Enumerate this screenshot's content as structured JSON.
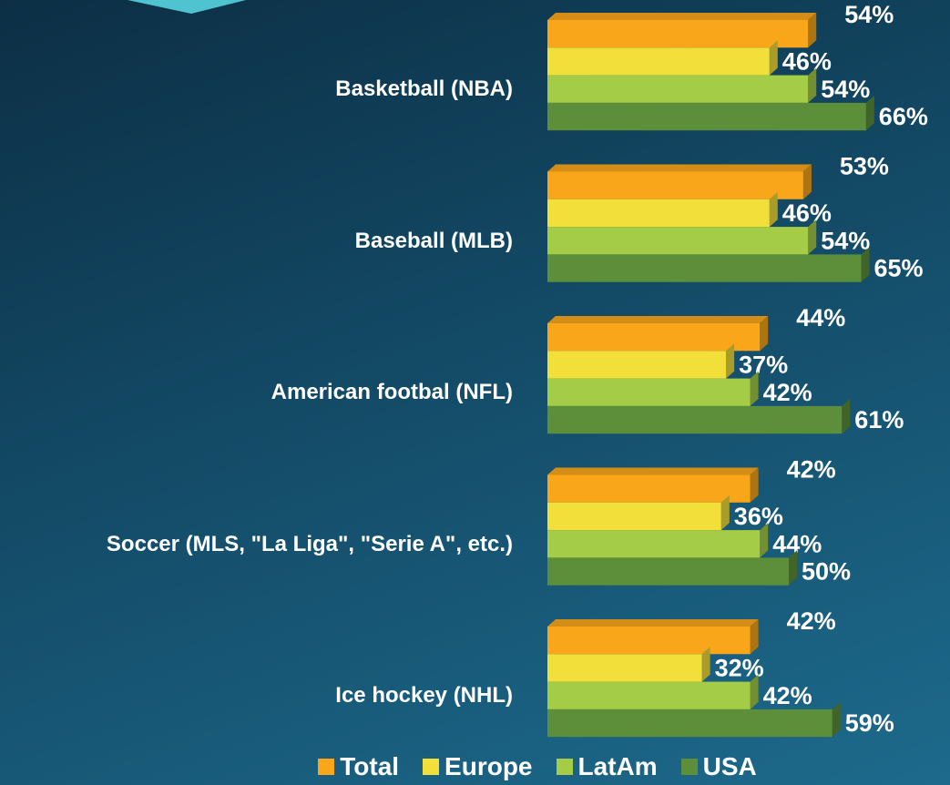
{
  "chart_data": {
    "type": "bar3d_horizontal",
    "categories": [
      "Basketball (NBA)",
      "Baseball (MLB)",
      "American footbal (NFL)",
      "Soccer (MLS, \"La Liga\", \"Serie A\", etc.)",
      "Ice hockey (NHL)"
    ],
    "series": [
      {
        "name": "Total",
        "color": "#f9a61a",
        "values": [
          54,
          53,
          44,
          42,
          42
        ],
        "value_labels": [
          "54%",
          "53%",
          "44%",
          "42%",
          "42%"
        ]
      },
      {
        "name": "Europe",
        "color": "#f2df3a",
        "values": [
          46,
          46,
          37,
          36,
          32
        ],
        "value_labels": [
          "46%",
          "46%",
          "37%",
          "36%",
          "32%"
        ]
      },
      {
        "name": "LatAm",
        "color": "#a4cc47",
        "values": [
          54,
          54,
          42,
          44,
          42
        ],
        "value_labels": [
          "54%",
          "54%",
          "42%",
          "44%",
          "42%"
        ]
      },
      {
        "name": "USA",
        "color": "#5d8f3a",
        "values": [
          66,
          65,
          61,
          50,
          59
        ],
        "value_labels": [
          "66%",
          "65%",
          "61%",
          "50%",
          "59%"
        ]
      }
    ],
    "xlim": [
      0,
      80
    ],
    "legend": "bottom"
  }
}
